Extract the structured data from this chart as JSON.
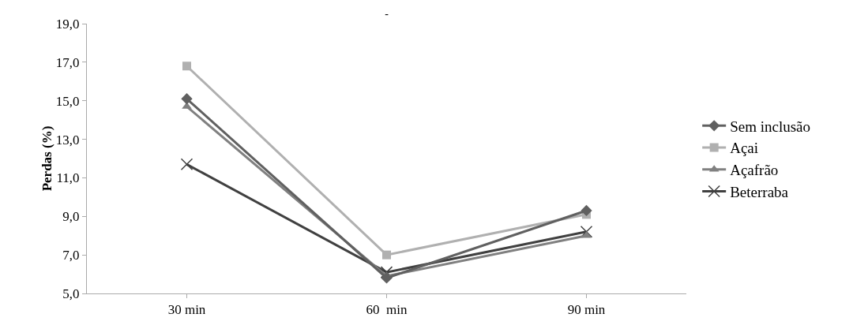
{
  "chart_data": {
    "type": "line",
    "title": "-",
    "ylabel": "Perdas (%)",
    "categories": [
      "30 min",
      "60  min",
      "90 min"
    ],
    "series": [
      {
        "name": "Sem inclusão",
        "color": "#606060",
        "marker": "diamond",
        "values": [
          15.1,
          5.8,
          9.3
        ]
      },
      {
        "name": "Açai",
        "color": "#b0b0b0",
        "marker": "square",
        "values": [
          16.8,
          7.0,
          9.1
        ]
      },
      {
        "name": "Açafrão",
        "color": "#808080",
        "marker": "triangle",
        "values": [
          14.7,
          5.9,
          8.0
        ]
      },
      {
        "name": "Beterraba",
        "color": "#404040",
        "marker": "cross",
        "values": [
          11.7,
          6.1,
          8.2
        ]
      }
    ],
    "ylim": [
      5,
      19
    ],
    "yticks": [
      {
        "value": 5,
        "label": "5,0"
      },
      {
        "value": 7,
        "label": "7,0"
      },
      {
        "value": 9,
        "label": "9,0"
      },
      {
        "value": 11,
        "label": "11,0"
      },
      {
        "value": 13,
        "label": "13,0"
      },
      {
        "value": 15,
        "label": "15,0"
      },
      {
        "value": 17,
        "label": "17,0"
      },
      {
        "value": 19,
        "label": "19,0"
      }
    ],
    "grid": false,
    "legend": "right",
    "line_style": "solid"
  }
}
